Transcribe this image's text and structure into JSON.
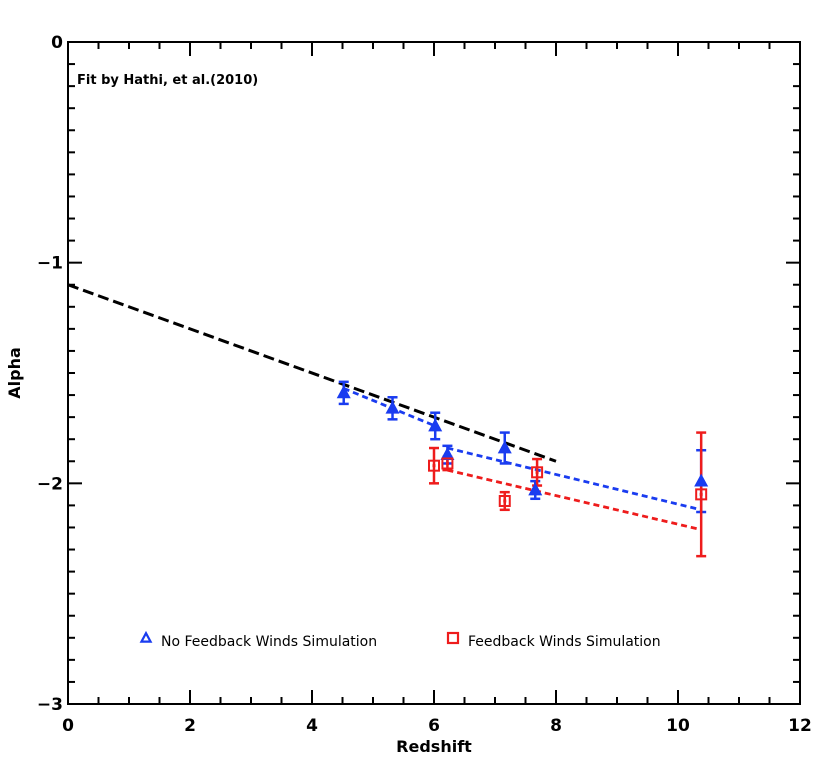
{
  "chart_data": {
    "type": "scatter",
    "title": "",
    "xlabel": "Redshift",
    "ylabel": "Alpha",
    "xlim": [
      0,
      12
    ],
    "ylim": [
      -3,
      0
    ],
    "x_ticks": [
      0,
      2,
      4,
      6,
      8,
      10,
      12
    ],
    "x_tick_labels": [
      "0",
      "2",
      "4",
      "6",
      "8",
      "10",
      "12"
    ],
    "y_ticks": [
      0,
      -1,
      -2,
      -3
    ],
    "y_tick_labels": [
      "0",
      "−1",
      "−2",
      "−3"
    ],
    "grid": false,
    "legend_placement": "bottom",
    "annotation": "Fit by Hathi, et al.(2010)",
    "series": [
      {
        "name": "No Feedback Winds Simulation",
        "marker": "triangle",
        "color": "#1a3cf0",
        "x": [
          4.52,
          5.32,
          6.02,
          6.22,
          7.16,
          7.66,
          10.38
        ],
        "y": [
          -1.59,
          -1.66,
          -1.74,
          -1.87,
          -1.84,
          -2.03,
          -1.99
        ],
        "err": [
          0.05,
          0.05,
          0.06,
          0.04,
          0.07,
          0.04,
          0.14
        ]
      },
      {
        "name": "Feedback Winds Simulation",
        "marker": "square",
        "color": "#ee1c1c",
        "x": [
          6.0,
          6.22,
          7.16,
          7.69,
          10.38
        ],
        "y": [
          -1.92,
          -1.91,
          -2.08,
          -1.95,
          -2.05
        ],
        "err": [
          0.08,
          0.03,
          0.04,
          0.06,
          0.28
        ]
      }
    ],
    "fit_lines": [
      {
        "label": "hathi",
        "color": "#000000",
        "x": [
          0,
          8.0
        ],
        "y": [
          -1.1,
          -1.9
        ]
      },
      {
        "label": "no-feedback-high",
        "color": "#1a3cf0",
        "x": [
          4.52,
          6.02
        ],
        "y": [
          -1.57,
          -1.74
        ]
      },
      {
        "label": "no-feedback-low",
        "color": "#1a3cf0",
        "x": [
          6.22,
          10.38
        ],
        "y": [
          -1.84,
          -2.12
        ]
      },
      {
        "label": "feedback",
        "color": "#ee1c1c",
        "x": [
          6.22,
          10.38
        ],
        "y": [
          -1.94,
          -2.21
        ]
      }
    ]
  }
}
